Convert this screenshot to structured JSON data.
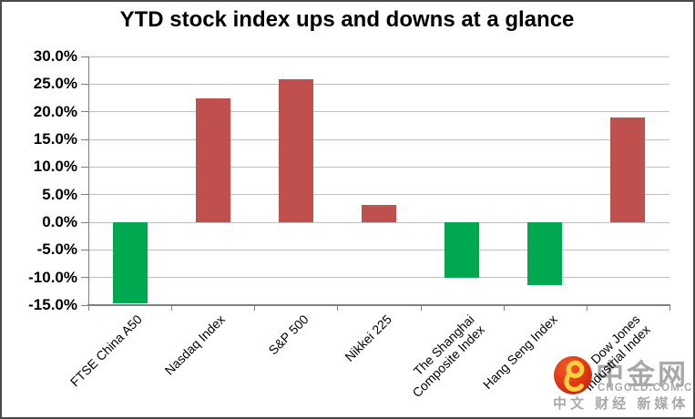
{
  "chart_data": {
    "type": "bar",
    "title": "YTD stock index ups and downs at a glance",
    "categories": [
      "FTSE China A50",
      "Nasdaq Index",
      "S&P 500",
      "Nikkei 225",
      "The Shanghai Composite Index",
      "Hang Seng Index",
      "Dow Jones Industrial Index"
    ],
    "category_label_lines": [
      [
        "FTSE China A50"
      ],
      [
        "Nasdaq Index"
      ],
      [
        "S&P 500"
      ],
      [
        "Nikkei 225"
      ],
      [
        "The Shanghai",
        "Composite Index"
      ],
      [
        "Hang Seng Index"
      ],
      [
        "Dow Jones",
        "Industrial Index"
      ]
    ],
    "values": [
      -14.7,
      22.4,
      25.9,
      3.1,
      -10.1,
      -11.3,
      19.0
    ],
    "unit": "%",
    "xlabel": "",
    "ylabel": "",
    "ylim": [
      -15,
      30
    ],
    "ytick_step": 5,
    "ytick_labels": [
      "30.0%",
      "25.0%",
      "20.0%",
      "15.0%",
      "10.0%",
      "5.0%",
      "0.0%",
      "-5.0%",
      "-10.0%",
      "-15.0%"
    ],
    "grid": true,
    "legend": "none",
    "colors": {
      "up_bar": "#c0504d",
      "down_bar": "#00a84f",
      "gridline": "#c0c0c0",
      "axis": "#808080"
    }
  },
  "watermark": {
    "logo_name": "cngold-flame-logo",
    "brand": "中金网",
    "domain": "CNGOLD.COM.CN",
    "tagline": "中文 财经 新媒体"
  }
}
